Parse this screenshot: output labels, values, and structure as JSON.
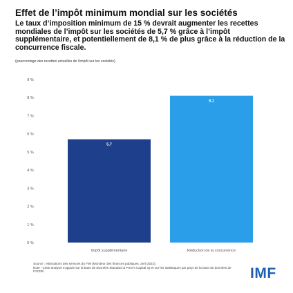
{
  "header": {
    "title": "Effet de l’impôt minimum mondial sur les sociétés",
    "subtitle": "Le taux d’imposition minimum de 15 % devrait augmenter les recettes mondiales de l’impôt sur les sociétés de 5,7 % grâce à l’impôt supplémentaire, et potentiellement de 8,1 % de plus grâce à la réduction de la concurrence fiscale.",
    "note": "(pourcentage des recettes actuelles de l’impôt sur les sociétés)"
  },
  "footer": {
    "source": "Source : estimations des services du FMI (Moniteur des finances publiques, avril 2022).",
    "note": "Note : Cette analyse s’appuie sur la base de données Standard & Poor’s Capital IQ et sur les statistiques par pays de la base de données de l’OCDE.",
    "logo": "IMF"
  },
  "colors": {
    "series": [
      "#1e3f8c",
      "#2a9ee8"
    ],
    "value_label": "#ffffff",
    "axis_text": "#555555",
    "logo": "#1f5fb4"
  },
  "chart_data": {
    "type": "bar",
    "categories": [
      "Impôt supplémentaire",
      "Réduction de la concurrence"
    ],
    "values": [
      5.7,
      8.1
    ],
    "value_labels": [
      "5,7",
      "8,1"
    ],
    "y_ticks": [
      "0 %",
      "1 %",
      "2 %",
      "3 %",
      "4 %",
      "5 %",
      "6 %",
      "7 %",
      "8 %",
      "9 %"
    ],
    "ylim": [
      0,
      9
    ],
    "grid": false,
    "legend": "none"
  }
}
